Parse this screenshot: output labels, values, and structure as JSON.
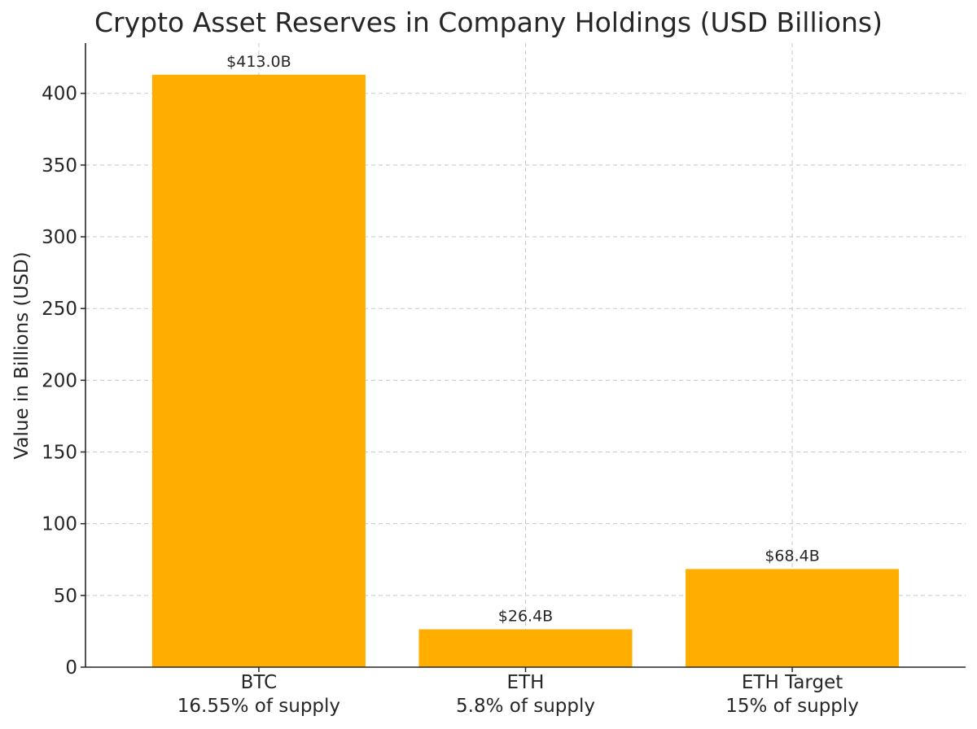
{
  "chart_data": {
    "type": "bar",
    "title": "Crypto Asset Reserves in Company Holdings (USD Billions)",
    "ylabel": "Value in Billions (USD)",
    "xlabel": "",
    "categories": [
      [
        "BTC",
        "16.55% of supply"
      ],
      [
        "ETH",
        "5.8% of supply"
      ],
      [
        "ETH Target",
        "15% of supply"
      ]
    ],
    "values": [
      413.0,
      26.4,
      68.4
    ],
    "data_labels": [
      "$413.0B",
      "$26.4B",
      "$68.4B"
    ],
    "ylim": [
      0,
      435
    ],
    "yticks": [
      0,
      50,
      100,
      150,
      200,
      250,
      300,
      350,
      400
    ],
    "grid": true,
    "bar_color": "#FFAE00",
    "grid_color": "#c8c8c8",
    "axis_color": "#262626"
  }
}
